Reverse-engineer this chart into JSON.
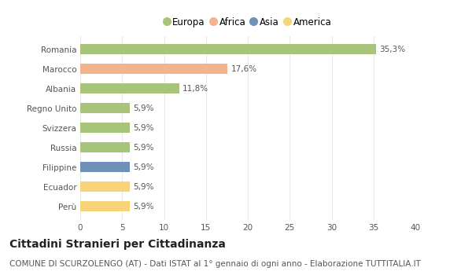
{
  "categories": [
    "Romania",
    "Marocco",
    "Albania",
    "Regno Unito",
    "Svizzera",
    "Russia",
    "Filippine",
    "Ecuador",
    "Perù"
  ],
  "values": [
    35.3,
    17.6,
    11.8,
    5.9,
    5.9,
    5.9,
    5.9,
    5.9,
    5.9
  ],
  "labels": [
    "35,3%",
    "17,6%",
    "11,8%",
    "5,9%",
    "5,9%",
    "5,9%",
    "5,9%",
    "5,9%",
    "5,9%"
  ],
  "bar_colors": [
    "#a8c47a",
    "#f2b48a",
    "#a8c47a",
    "#a8c47a",
    "#a8c47a",
    "#a8c47a",
    "#7090b8",
    "#f7d47a",
    "#f7d47a"
  ],
  "legend_labels": [
    "Europa",
    "Africa",
    "Asia",
    "America"
  ],
  "legend_colors": [
    "#a8c47a",
    "#f2b48a",
    "#7090b8",
    "#f7d47a"
  ],
  "xlim": [
    0,
    40
  ],
  "xticks": [
    0,
    5,
    10,
    15,
    20,
    25,
    30,
    35,
    40
  ],
  "title": "Cittadini Stranieri per Cittadinanza",
  "subtitle": "COMUNE DI SCURZOLENGO (AT) - Dati ISTAT al 1° gennaio di ogni anno - Elaborazione TUTTITALIA.IT",
  "title_fontsize": 10,
  "subtitle_fontsize": 7.5,
  "label_fontsize": 7.5,
  "tick_fontsize": 7.5,
  "legend_fontsize": 8.5,
  "bar_height": 0.52,
  "background_color": "#ffffff",
  "grid_color": "#e8e8e8"
}
